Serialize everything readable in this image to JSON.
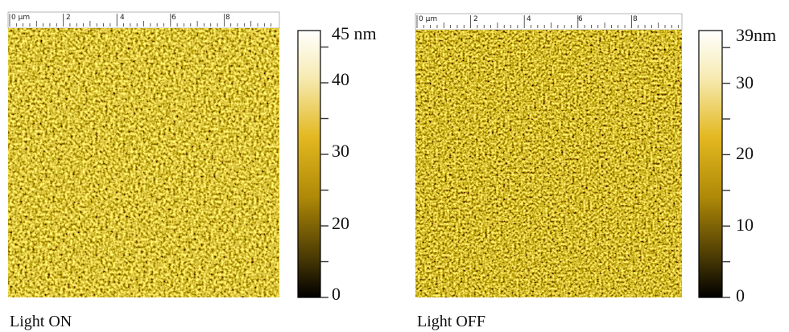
{
  "panels": [
    {
      "ruler": [
        "0 µm",
        "2",
        "4",
        "6",
        "8"
      ],
      "colorbar": [
        "45 nm",
        "40",
        "30",
        "20",
        "0"
      ],
      "caption": "Light ON"
    },
    {
      "ruler": [
        "0 µm",
        "2",
        "4",
        "6",
        "8"
      ],
      "colorbar": [
        "39nm",
        "30",
        "20",
        "10",
        "0"
      ],
      "caption": "Light OFF"
    }
  ]
}
